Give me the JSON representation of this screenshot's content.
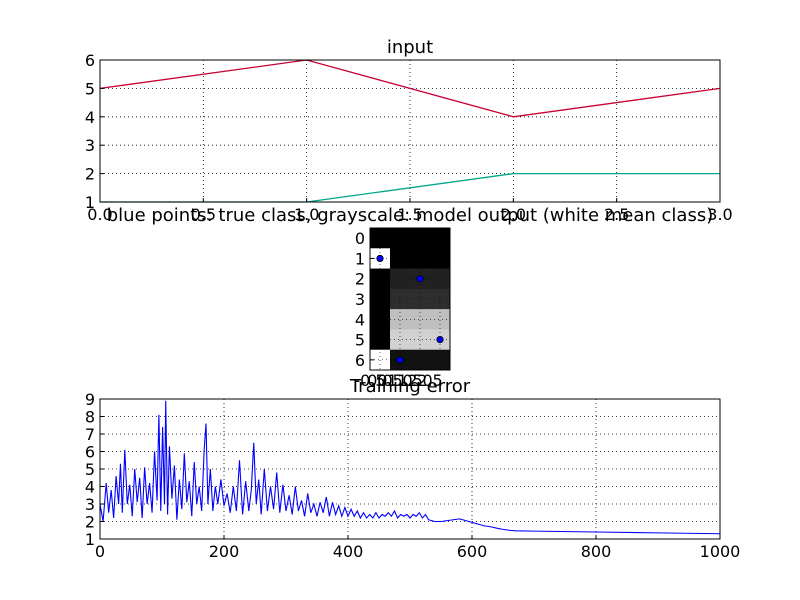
{
  "chart_data": [
    {
      "type": "line",
      "title": "input",
      "xlabel": "",
      "ylabel": "",
      "x": [
        0,
        1,
        2,
        3
      ],
      "series": [
        {
          "color": "#c80033",
          "values": [
            5,
            6,
            4,
            5
          ]
        },
        {
          "color": "#00a58c",
          "values": [
            1,
            1,
            2,
            2
          ]
        }
      ],
      "xlim": [
        0,
        3
      ],
      "ylim": [
        1,
        6
      ],
      "xticks": [
        0.0,
        0.5,
        1.0,
        1.5,
        2.0,
        2.5,
        3.0
      ],
      "xtick_labels": [
        "0.0",
        "0.5",
        "1.0",
        "1.5",
        "2.0",
        "2.5",
        "3.0"
      ],
      "yticks": [
        1,
        2,
        3,
        4,
        5,
        6
      ],
      "ytick_labels": [
        "1",
        "2",
        "3",
        "4",
        "5",
        "6"
      ],
      "grid": true
    },
    {
      "type": "heatmap",
      "title": "blue points: true class, grayscale: model output (white mean class)",
      "rows": 7,
      "cols": 4,
      "values": [
        [
          0.0,
          0.0,
          0.0,
          0.0
        ],
        [
          1.0,
          0.0,
          0.0,
          0.0
        ],
        [
          0.0,
          0.13,
          0.13,
          0.13
        ],
        [
          0.0,
          0.18,
          0.18,
          0.18
        ],
        [
          0.0,
          0.75,
          0.75,
          0.75
        ],
        [
          0.0,
          0.82,
          0.82,
          0.82
        ],
        [
          1.0,
          0.07,
          0.07,
          0.07
        ]
      ],
      "points": [
        {
          "row": 1,
          "col": 0
        },
        {
          "row": 2,
          "col": 2
        },
        {
          "row": 5,
          "col": 3
        },
        {
          "row": 6,
          "col": 1
        }
      ],
      "point_color": "#0000ff",
      "ytick_labels": [
        "0",
        "1",
        "2",
        "3",
        "4",
        "5",
        "6"
      ],
      "xtick_labels": [
        "-0.5",
        "0.0",
        "0.5",
        "1.0",
        "1.5",
        "2.0",
        "2.5"
      ],
      "xticks": [
        -0.5,
        0.0,
        0.5,
        1.0,
        1.5,
        2.0,
        2.5
      ]
    },
    {
      "type": "line",
      "title": "Training error",
      "xlabel": "",
      "ylabel": "",
      "xlim": [
        0,
        1000
      ],
      "ylim": [
        1,
        9
      ],
      "xticks": [
        0,
        200,
        400,
        600,
        800,
        1000
      ],
      "xtick_labels": [
        "0",
        "200",
        "400",
        "600",
        "800",
        "1000"
      ],
      "yticks": [
        1,
        2,
        3,
        4,
        5,
        6,
        7,
        8,
        9
      ],
      "ytick_labels": [
        "1",
        "2",
        "3",
        "4",
        "5",
        "6",
        "7",
        "8",
        "9"
      ],
      "grid": true,
      "series": [
        {
          "color": "#0000ff",
          "points": [
            [
              0,
              3.0
            ],
            [
              5,
              2.0
            ],
            [
              10,
              4.2
            ],
            [
              14,
              2.5
            ],
            [
              18,
              3.8
            ],
            [
              22,
              2.2
            ],
            [
              26,
              4.6
            ],
            [
              30,
              3.0
            ],
            [
              33,
              5.3
            ],
            [
              36,
              2.5
            ],
            [
              40,
              6.1
            ],
            [
              44,
              3.0
            ],
            [
              48,
              4.1
            ],
            [
              52,
              2.3
            ],
            [
              56,
              5.0
            ],
            [
              60,
              3.1
            ],
            [
              64,
              4.5
            ],
            [
              68,
              2.2
            ],
            [
              72,
              5.1
            ],
            [
              76,
              3.0
            ],
            [
              80,
              4.2
            ],
            [
              84,
              2.5
            ],
            [
              88,
              6.0
            ],
            [
              92,
              3.2
            ],
            [
              95,
              8.1
            ],
            [
              98,
              2.6
            ],
            [
              101,
              7.4
            ],
            [
              104,
              3.0
            ],
            [
              106,
              8.9
            ],
            [
              109,
              2.4
            ],
            [
              112,
              6.3
            ],
            [
              116,
              3.3
            ],
            [
              120,
              5.2
            ],
            [
              124,
              2.1
            ],
            [
              128,
              4.4
            ],
            [
              132,
              2.7
            ],
            [
              136,
              5.9
            ],
            [
              140,
              3.1
            ],
            [
              144,
              4.3
            ],
            [
              148,
              2.3
            ],
            [
              152,
              5.4
            ],
            [
              156,
              3.0
            ],
            [
              160,
              4.0
            ],
            [
              164,
              2.6
            ],
            [
              168,
              6.1
            ],
            [
              171,
              7.6
            ],
            [
              174,
              3.0
            ],
            [
              178,
              5.0
            ],
            [
              182,
              2.6
            ],
            [
              186,
              4.0
            ],
            [
              190,
              3.0
            ],
            [
              195,
              4.4
            ],
            [
              200,
              2.9
            ],
            [
              205,
              3.6
            ],
            [
              210,
              2.5
            ],
            [
              215,
              4.0
            ],
            [
              220,
              2.6
            ],
            [
              225,
              5.5
            ],
            [
              230,
              2.4
            ],
            [
              235,
              4.3
            ],
            [
              240,
              2.6
            ],
            [
              244,
              3.8
            ],
            [
              248,
              6.5
            ],
            [
              252,
              3.0
            ],
            [
              256,
              4.4
            ],
            [
              260,
              2.4
            ],
            [
              265,
              5.0
            ],
            [
              270,
              2.6
            ],
            [
              275,
              4.0
            ],
            [
              280,
              2.7
            ],
            [
              285,
              4.8
            ],
            [
              290,
              2.5
            ],
            [
              295,
              4.1
            ],
            [
              300,
              2.6
            ],
            [
              305,
              3.5
            ],
            [
              310,
              2.4
            ],
            [
              315,
              4.0
            ],
            [
              320,
              2.6
            ],
            [
              325,
              3.2
            ],
            [
              330,
              2.3
            ],
            [
              335,
              3.6
            ],
            [
              340,
              2.5
            ],
            [
              345,
              3.0
            ],
            [
              350,
              2.3
            ],
            [
              355,
              3.1
            ],
            [
              360,
              2.5
            ],
            [
              365,
              3.4
            ],
            [
              370,
              2.3
            ],
            [
              375,
              3.1
            ],
            [
              380,
              2.4
            ],
            [
              385,
              2.9
            ],
            [
              390,
              2.3
            ],
            [
              395,
              2.8
            ],
            [
              400,
              2.3
            ],
            [
              405,
              2.7
            ],
            [
              410,
              2.3
            ],
            [
              415,
              2.6
            ],
            [
              420,
              2.2
            ],
            [
              425,
              2.5
            ],
            [
              430,
              2.2
            ],
            [
              435,
              2.4
            ],
            [
              440,
              2.2
            ],
            [
              445,
              2.5
            ],
            [
              450,
              2.2
            ],
            [
              455,
              2.4
            ],
            [
              460,
              2.3
            ],
            [
              465,
              2.5
            ],
            [
              470,
              2.3
            ],
            [
              475,
              2.6
            ],
            [
              480,
              2.2
            ],
            [
              485,
              2.4
            ],
            [
              490,
              2.3
            ],
            [
              495,
              2.4
            ],
            [
              500,
              2.2
            ],
            [
              505,
              2.4
            ],
            [
              510,
              2.3
            ],
            [
              515,
              2.5
            ],
            [
              520,
              2.2
            ],
            [
              525,
              2.4
            ],
            [
              530,
              2.1
            ],
            [
              540,
              2.0
            ],
            [
              550,
              2.0
            ],
            [
              560,
              2.05
            ],
            [
              570,
              2.1
            ],
            [
              580,
              2.15
            ],
            [
              590,
              2.05
            ],
            [
              600,
              1.95
            ],
            [
              610,
              1.85
            ],
            [
              620,
              1.75
            ],
            [
              630,
              1.7
            ],
            [
              640,
              1.62
            ],
            [
              650,
              1.55
            ],
            [
              660,
              1.5
            ],
            [
              670,
              1.47
            ],
            [
              700,
              1.45
            ],
            [
              800,
              1.4
            ],
            [
              900,
              1.35
            ],
            [
              1000,
              1.3
            ]
          ]
        }
      ]
    }
  ]
}
